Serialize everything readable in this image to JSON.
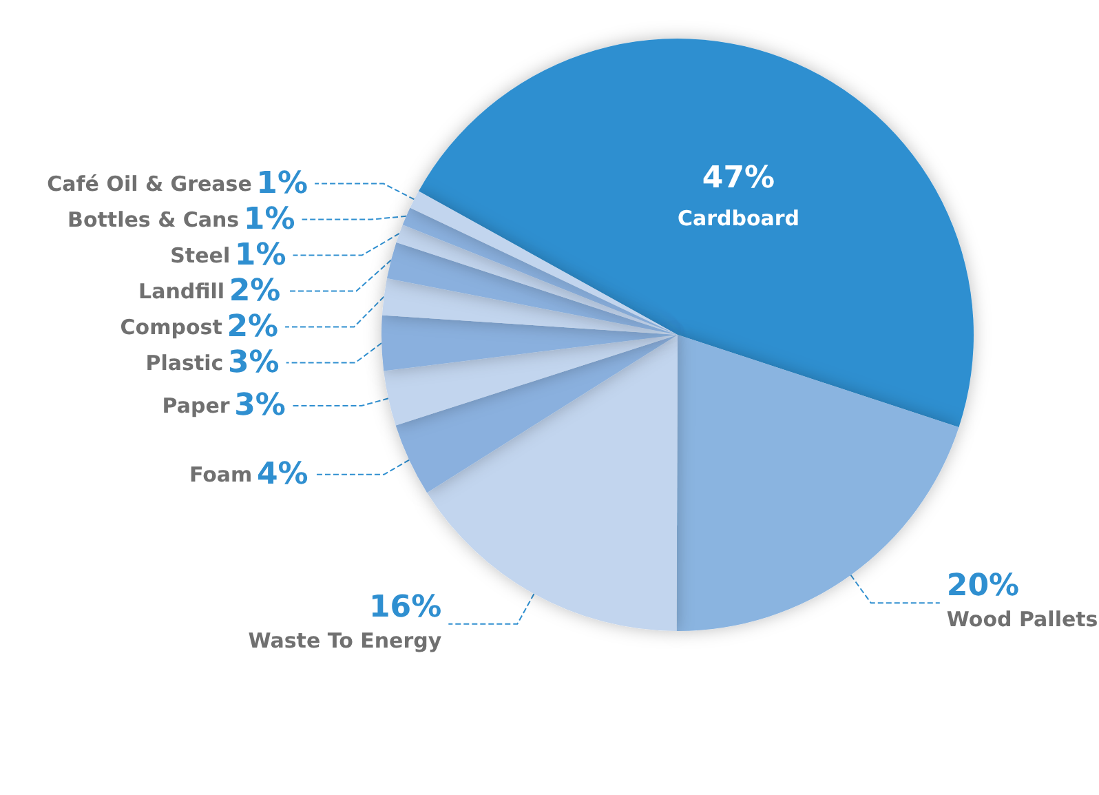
{
  "chart_data": {
    "type": "pie",
    "categories": [
      "Cardboard",
      "Wood Pallets",
      "Waste To Energy",
      "Foam",
      "Paper",
      "Plastic",
      "Compost",
      "Landfill",
      "Steel",
      "Bottles & Cans",
      "Café Oil & Grease"
    ],
    "values": [
      47,
      20,
      16,
      4,
      3,
      3,
      2,
      2,
      1,
      1,
      1
    ],
    "value_labels": [
      "47%",
      "20%",
      "16%",
      "4%",
      "3%",
      "3%",
      "2%",
      "2%",
      "1%",
      "1%",
      "1%"
    ],
    "colors": [
      "#2f8fd0",
      "#8ab4e0",
      "#c2d5ee",
      "#8ab0de",
      "#c2d5ee",
      "#8ab0de",
      "#c2d5ee",
      "#8ab0de",
      "#c2d5ee",
      "#8ab0de",
      "#c2d5ee"
    ],
    "legend": false
  }
}
